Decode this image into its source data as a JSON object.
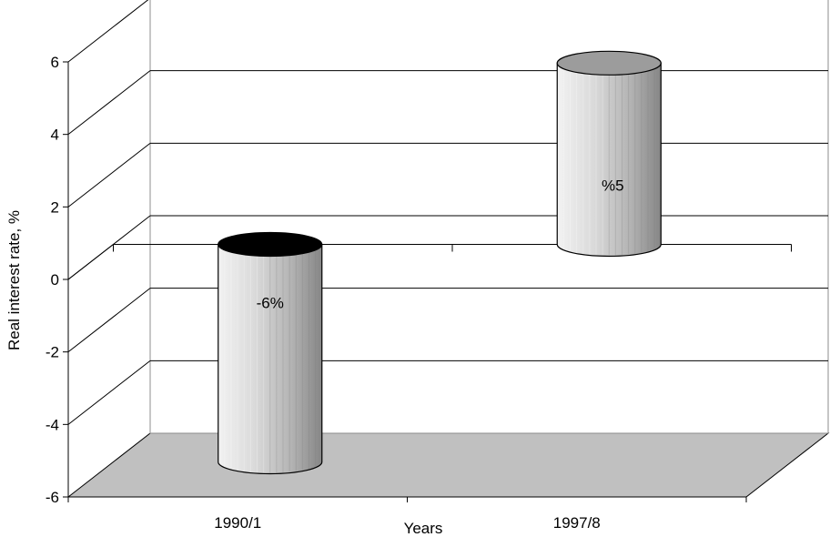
{
  "chart_data": {
    "type": "bar",
    "style": "3d-cylinder",
    "categories": [
      "1990/1",
      "1997/8"
    ],
    "values": [
      -6,
      5
    ],
    "data_labels": [
      "-6%",
      "%5"
    ],
    "xlabel": "Years",
    "ylabel": "Real interest rate, %",
    "ylim": [
      -6,
      6
    ],
    "yticks": [
      6,
      4,
      2,
      0,
      -2,
      -4,
      -6
    ],
    "grid": true,
    "legend": "none",
    "colors": {
      "cylinder_light": "#e2e2e2",
      "cylinder_dark": "#8a8a8a",
      "top_negative": "#000000",
      "top_positive": "#9c9c9c",
      "floor": "#c0c0c0",
      "gridline": "#000000"
    }
  }
}
